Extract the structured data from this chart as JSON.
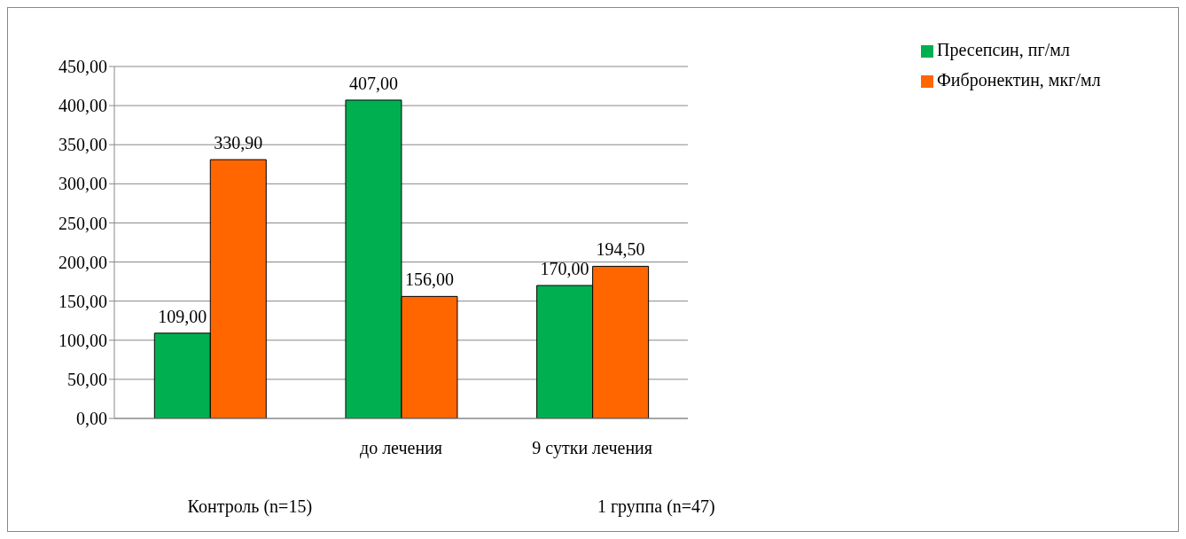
{
  "chart_data": {
    "type": "bar",
    "categories": [
      null,
      "до лечения",
      "9 сутки лечения"
    ],
    "series": [
      {
        "name": "Пресепсин, пг/мл",
        "color": "#00b050",
        "values": [
          109,
          407,
          170
        ],
        "value_labels": [
          "109,00",
          "407,00",
          "170,00"
        ]
      },
      {
        "name": "Фибронектин, мкг/мл",
        "color": "#ff6600",
        "values": [
          330.9,
          156,
          194.5
        ],
        "value_labels": [
          "330,90",
          "156,00",
          "194,50"
        ]
      }
    ],
    "ylim": [
      0,
      450
    ],
    "yticks": [
      {
        "value": 0,
        "label": "0,00"
      },
      {
        "value": 50,
        "label": "50,00"
      },
      {
        "value": 100,
        "label": "100,00"
      },
      {
        "value": 150,
        "label": "150,00"
      },
      {
        "value": 200,
        "label": "200,00"
      },
      {
        "value": 250,
        "label": "250,00"
      },
      {
        "value": 300,
        "label": "300,00"
      },
      {
        "value": 350,
        "label": "350,00"
      },
      {
        "value": 400,
        "label": "400,00"
      },
      {
        "value": 450,
        "label": "450,00"
      }
    ],
    "grid": "y",
    "legend": "top right",
    "annotations": [
      "Контроль (n=15)",
      "1 группа (n=47)"
    ]
  }
}
